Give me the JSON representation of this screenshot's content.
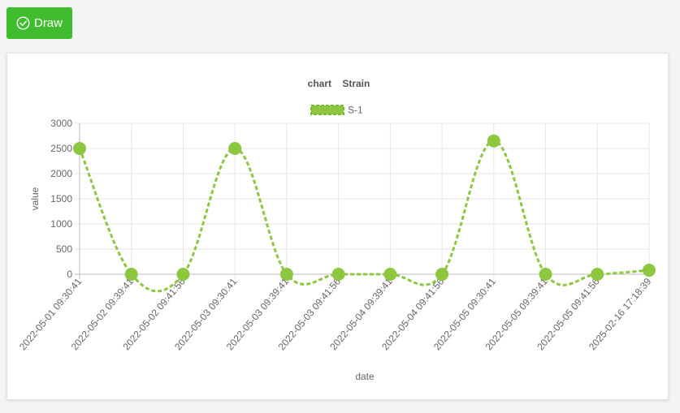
{
  "toolbar": {
    "draw_label": "Draw",
    "draw_icon": "check-circle-icon",
    "button_color": "#3fbd2f"
  },
  "chart_data": {
    "type": "line",
    "title": "chart    Strain",
    "xlabel": "date",
    "ylabel": "value",
    "ylim": [
      0,
      3000
    ],
    "yticks": [
      0,
      500,
      1000,
      1500,
      2000,
      2500,
      3000
    ],
    "grid": true,
    "legend_position": "top-center",
    "categories": [
      "2022-05-01 09:30:41",
      "2022-05-02 09:39:41",
      "2022-05-02 09:41:56",
      "2022-05-03 09:30:41",
      "2022-05-03 09:39:41",
      "2022-05-03 09:41:56",
      "2022-05-04 09:39:41",
      "2022-05-04 09:41:56",
      "2022-05-05 09:30:41",
      "2022-05-05 09:39:41",
      "2022-05-05 09:41:56",
      "2025-02-16 17:18:39"
    ],
    "series": [
      {
        "name": "S-1",
        "color": "#8dc63f",
        "line_style": "dashed",
        "values": [
          2500,
          0,
          0,
          2500,
          0,
          0,
          0,
          0,
          2650,
          0,
          0,
          80
        ]
      }
    ]
  }
}
